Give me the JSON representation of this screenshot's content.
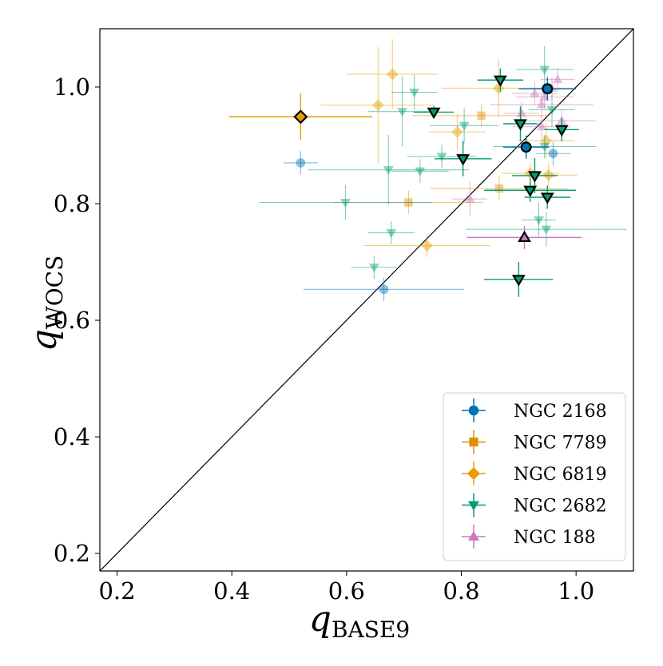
{
  "chart_data": {
    "type": "scatter",
    "title": "",
    "xlabel": {
      "symbol": "q",
      "subscript": "BASE9"
    },
    "ylabel": {
      "symbol": "q",
      "subscript": "WOCS"
    },
    "xlim": [
      0.17,
      1.1
    ],
    "ylim": [
      0.17,
      1.1
    ],
    "xticks": [
      "0.2",
      "0.4",
      "0.6",
      "0.8",
      "1.0"
    ],
    "yticks": [
      "0.2",
      "0.4",
      "0.6",
      "0.8",
      "1.0"
    ],
    "grid": false,
    "diagonal": "y = x",
    "legend_position": "bottom-right",
    "series": [
      {
        "name": "NGC 2168",
        "color": "#0173b2",
        "marker": "circle",
        "points": [
          {
            "x": 0.52,
            "y": 0.87,
            "xe": 0.03,
            "ye": 0.02,
            "hl": false
          },
          {
            "x": 0.665,
            "y": 0.653,
            "xe": 0.14,
            "ye": 0.02,
            "hl": false
          },
          {
            "x": 0.96,
            "y": 0.886,
            "xe": 0.03,
            "ye": 0.02,
            "hl": false
          },
          {
            "x": 0.95,
            "y": 0.997,
            "xe": 0.05,
            "ye": 0.02,
            "hl": true
          },
          {
            "x": 0.913,
            "y": 0.897,
            "xe": 0.04,
            "ye": 0.02,
            "hl": true
          }
        ]
      },
      {
        "name": "NGC 7789",
        "color": "#de8f05",
        "marker": "square",
        "points": [
          {
            "x": 0.835,
            "y": 0.951,
            "xe": 0.12,
            "ye": 0.02,
            "hl": false
          },
          {
            "x": 0.708,
            "y": 0.802,
            "xe": 0.13,
            "ye": 0.02,
            "hl": false
          },
          {
            "x": 0.866,
            "y": 0.826,
            "xe": 0.12,
            "ye": 0.02,
            "hl": false
          }
        ]
      },
      {
        "name": "NGC 6819",
        "color": "#e69f00",
        "marker": "diamond",
        "points": [
          {
            "x": 0.52,
            "y": 0.949,
            "xe": 0.125,
            "ye": 0.04,
            "hl": true
          },
          {
            "x": 0.68,
            "y": 1.022,
            "xe": 0.08,
            "ye": 0.06,
            "hl": false
          },
          {
            "x": 0.655,
            "y": 0.969,
            "xe": 0.1,
            "ye": 0.1,
            "hl": false
          },
          {
            "x": 0.865,
            "y": 0.998,
            "xe": 0.1,
            "ye": 0.05,
            "hl": false
          },
          {
            "x": 0.793,
            "y": 0.923,
            "xe": 0.05,
            "ye": 0.03,
            "hl": false
          },
          {
            "x": 0.948,
            "y": 0.908,
            "xe": 0.05,
            "ye": 0.03,
            "hl": false
          },
          {
            "x": 0.952,
            "y": 0.849,
            "xe": 0.05,
            "ye": 0.02,
            "hl": false
          },
          {
            "x": 0.92,
            "y": 0.852,
            "xe": 0.05,
            "ye": 0.02,
            "hl": false
          },
          {
            "x": 0.74,
            "y": 0.728,
            "xe": 0.11,
            "ye": 0.02,
            "hl": false
          }
        ]
      },
      {
        "name": "NGC 2682",
        "color": "#029e73",
        "marker": "triangle-down",
        "points": [
          {
            "x": 0.868,
            "y": 1.012,
            "xe": 0.04,
            "ye": 0.02,
            "hl": true
          },
          {
            "x": 0.752,
            "y": 0.957,
            "xe": 0.035,
            "ye": 0.01,
            "hl": true
          },
          {
            "x": 0.903,
            "y": 0.937,
            "xe": 0.03,
            "ye": 0.03,
            "hl": true
          },
          {
            "x": 0.975,
            "y": 0.927,
            "xe": 0.03,
            "ye": 0.02,
            "hl": true
          },
          {
            "x": 0.803,
            "y": 0.877,
            "xe": 0.05,
            "ye": 0.03,
            "hl": true
          },
          {
            "x": 0.928,
            "y": 0.848,
            "xe": 0.04,
            "ye": 0.03,
            "hl": true
          },
          {
            "x": 0.92,
            "y": 0.823,
            "xe": 0.08,
            "ye": 0.02,
            "hl": true
          },
          {
            "x": 0.95,
            "y": 0.811,
            "xe": 0.04,
            "ye": 0.02,
            "hl": true
          },
          {
            "x": 0.9,
            "y": 0.67,
            "xe": 0.06,
            "ye": 0.03,
            "hl": true
          },
          {
            "x": 0.945,
            "y": 1.03,
            "xe": 0.05,
            "ye": 0.04,
            "hl": false
          },
          {
            "x": 0.718,
            "y": 0.991,
            "xe": 0.04,
            "ye": 0.03,
            "hl": false
          },
          {
            "x": 0.697,
            "y": 0.958,
            "xe": 0.06,
            "ye": 0.06,
            "hl": false
          },
          {
            "x": 0.805,
            "y": 0.934,
            "xe": 0.06,
            "ye": 0.03,
            "hl": false
          },
          {
            "x": 0.958,
            "y": 0.961,
            "xe": 0.04,
            "ye": 0.03,
            "hl": false
          },
          {
            "x": 0.945,
            "y": 0.898,
            "xe": 0.09,
            "ye": 0.02,
            "hl": false
          },
          {
            "x": 0.766,
            "y": 0.881,
            "xe": 0.06,
            "ye": 0.02,
            "hl": false
          },
          {
            "x": 0.673,
            "y": 0.858,
            "xe": 0.14,
            "ye": 0.06,
            "hl": false
          },
          {
            "x": 0.728,
            "y": 0.856,
            "xe": 0.05,
            "ye": 0.02,
            "hl": false
          },
          {
            "x": 0.598,
            "y": 0.802,
            "xe": 0.15,
            "ye": 0.03,
            "hl": false
          },
          {
            "x": 0.678,
            "y": 0.75,
            "xe": 0.04,
            "ye": 0.02,
            "hl": false
          },
          {
            "x": 0.935,
            "y": 0.772,
            "xe": 0.03,
            "ye": 0.03,
            "hl": false
          },
          {
            "x": 0.948,
            "y": 0.756,
            "xe": 0.14,
            "ye": 0.03,
            "hl": false
          },
          {
            "x": 0.648,
            "y": 0.691,
            "xe": 0.04,
            "ye": 0.02,
            "hl": false
          }
        ]
      },
      {
        "name": "NGC 188",
        "color": "#cc78bc",
        "marker": "triangle-up",
        "points": [
          {
            "x": 0.968,
            "y": 1.013,
            "xe": 0.03,
            "ye": 0.02,
            "hl": false
          },
          {
            "x": 0.958,
            "y": 0.998,
            "xe": 0.04,
            "ye": 0.02,
            "hl": false
          },
          {
            "x": 0.928,
            "y": 0.989,
            "xe": 0.04,
            "ye": 0.02,
            "hl": false
          },
          {
            "x": 0.945,
            "y": 0.983,
            "xe": 0.05,
            "ye": 0.02,
            "hl": false
          },
          {
            "x": 0.94,
            "y": 0.97,
            "xe": 0.09,
            "ye": 0.02,
            "hl": false
          },
          {
            "x": 0.905,
            "y": 0.955,
            "xe": 0.03,
            "ye": 0.02,
            "hl": false
          },
          {
            "x": 0.975,
            "y": 0.942,
            "xe": 0.06,
            "ye": 0.02,
            "hl": false
          },
          {
            "x": 0.94,
            "y": 0.932,
            "xe": 0.05,
            "ye": 0.02,
            "hl": false
          },
          {
            "x": 0.815,
            "y": 0.808,
            "xe": 0.03,
            "ye": 0.03,
            "hl": false
          },
          {
            "x": 0.91,
            "y": 0.742,
            "xe": 0.1,
            "ye": 0.02,
            "hl": true
          }
        ]
      }
    ]
  }
}
